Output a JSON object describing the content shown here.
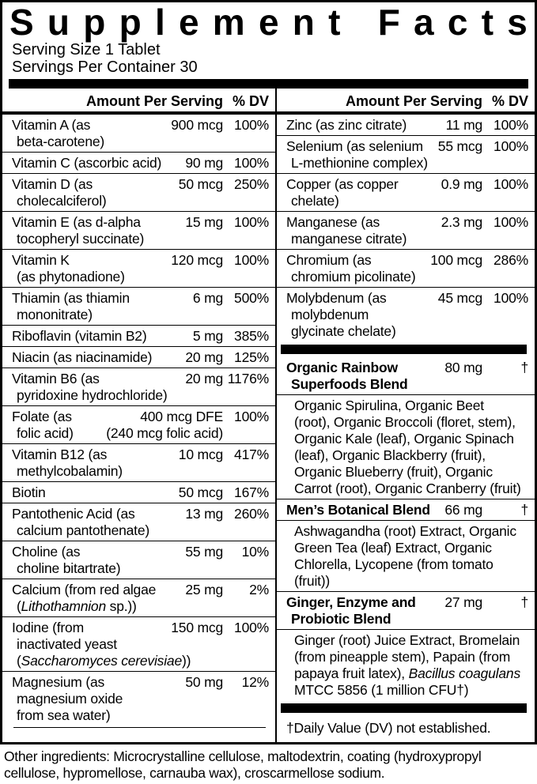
{
  "label": {
    "title": "Supplement Facts",
    "serving_size": "Serving Size 1 Tablet",
    "servings_per_container": "Servings Per Container 30",
    "column_header": {
      "amount": "Amount Per Serving",
      "dv": "% DV"
    },
    "left_column": [
      {
        "type": "row",
        "name_lines": [
          [
            "Vitamin A (as"
          ],
          [
            "beta-carotene)"
          ]
        ],
        "amount_lines": [
          "900 mcg"
        ],
        "dv": "100%"
      },
      {
        "type": "row",
        "name_lines": [
          [
            "Vitamin C (ascorbic acid)"
          ]
        ],
        "amount_lines": [
          "90 mg"
        ],
        "dv": "100%"
      },
      {
        "type": "row",
        "name_lines": [
          [
            "Vitamin D (as"
          ],
          [
            "cholecalciferol)"
          ]
        ],
        "amount_lines": [
          "50 mcg"
        ],
        "dv": "250%"
      },
      {
        "type": "row",
        "name_lines": [
          [
            "Vitamin E (as d-alpha"
          ],
          [
            "tocopheryl succinate)"
          ]
        ],
        "amount_lines": [
          "15 mg"
        ],
        "dv": "100%"
      },
      {
        "type": "row",
        "name_lines": [
          [
            "Vitamin K"
          ],
          [
            "(as phytonadione)"
          ]
        ],
        "amount_lines": [
          "120 mcg"
        ],
        "dv": "100%"
      },
      {
        "type": "row",
        "name_lines": [
          [
            "Thiamin (as thiamin"
          ],
          [
            "mononitrate)"
          ]
        ],
        "amount_lines": [
          "6 mg"
        ],
        "dv": "500%"
      },
      {
        "type": "row",
        "name_lines": [
          [
            "Riboflavin (vitamin B2)"
          ]
        ],
        "amount_lines": [
          "5 mg"
        ],
        "dv": "385%"
      },
      {
        "type": "row",
        "name_lines": [
          [
            "Niacin (as niacinamide)"
          ]
        ],
        "amount_lines": [
          "20 mg"
        ],
        "dv": "125%"
      },
      {
        "type": "row",
        "name_lines": [
          [
            "Vitamin B6 (as"
          ],
          [
            "pyridoxine hydrochloride)"
          ]
        ],
        "amount_lines": [
          "20 mg"
        ],
        "dv": "1176%"
      },
      {
        "type": "row",
        "name_lines": [
          [
            "Folate (as"
          ],
          [
            "folic acid)"
          ]
        ],
        "amount_lines": [
          "400 mcg DFE",
          "(240 mcg folic acid)"
        ],
        "dv": "100%"
      },
      {
        "type": "row",
        "name_lines": [
          [
            "Vitamin B12 (as"
          ],
          [
            "methylcobalamin)"
          ]
        ],
        "amount_lines": [
          "10 mcg"
        ],
        "dv": "417%"
      },
      {
        "type": "row",
        "name_lines": [
          [
            "Biotin"
          ]
        ],
        "amount_lines": [
          "50 mcg"
        ],
        "dv": "167%"
      },
      {
        "type": "row",
        "name_lines": [
          [
            "Pantothenic Acid (as"
          ],
          [
            "calcium pantothenate)"
          ]
        ],
        "amount_lines": [
          "13 mg"
        ],
        "dv": "260%"
      },
      {
        "type": "row",
        "name_lines": [
          [
            "Choline (as"
          ],
          [
            "choline bitartrate)"
          ]
        ],
        "amount_lines": [
          "55 mg"
        ],
        "dv": "10%"
      },
      {
        "type": "row",
        "name_lines": [
          [
            "Calcium (from red algae"
          ],
          [
            "(",
            {
              "i": "Lithothamnion"
            },
            " sp.))"
          ]
        ],
        "amount_lines": [
          "25 mg"
        ],
        "dv": "2%"
      },
      {
        "type": "row",
        "name_lines": [
          [
            "Iodine (from"
          ],
          [
            "inactivated yeast"
          ],
          [
            "(",
            {
              "i": "Saccharomyces cerevisiae"
            },
            "))"
          ]
        ],
        "amount_lines": [
          "150 mcg"
        ],
        "dv": "100%"
      },
      {
        "type": "row",
        "name_lines": [
          [
            "Magnesium (as"
          ],
          [
            "magnesium oxide"
          ],
          [
            "from sea water)"
          ]
        ],
        "amount_lines": [
          "50 mg"
        ],
        "dv": "12%"
      }
    ],
    "right_column": [
      {
        "type": "row",
        "name_lines": [
          [
            "Zinc (as zinc citrate)"
          ]
        ],
        "amount_lines": [
          "11 mg"
        ],
        "dv": "100%"
      },
      {
        "type": "row",
        "name_lines": [
          [
            "Selenium (as selenium"
          ],
          [
            "L-methionine complex)"
          ]
        ],
        "amount_lines": [
          "55 mcg"
        ],
        "dv": "100%"
      },
      {
        "type": "row",
        "name_lines": [
          [
            "Copper (as copper"
          ],
          [
            "chelate)"
          ]
        ],
        "amount_lines": [
          "0.9 mg"
        ],
        "dv": "100%"
      },
      {
        "type": "row",
        "name_lines": [
          [
            "Manganese (as"
          ],
          [
            "manganese citrate)"
          ]
        ],
        "amount_lines": [
          "2.3 mg"
        ],
        "dv": "100%"
      },
      {
        "type": "row",
        "name_lines": [
          [
            "Chromium (as"
          ],
          [
            "chromium picolinate)"
          ]
        ],
        "amount_lines": [
          "100 mcg"
        ],
        "dv": "286%"
      },
      {
        "type": "row",
        "name_lines": [
          [
            "Molybdenum (as"
          ],
          [
            "molybdenum"
          ],
          [
            "glycinate chelate)"
          ]
        ],
        "amount_lines": [
          "45 mcg"
        ],
        "dv": "100%"
      },
      {
        "type": "bar"
      },
      {
        "type": "blend_header",
        "name_lines": [
          [
            "Organic Rainbow"
          ],
          [
            "Superfoods Blend"
          ]
        ],
        "amount_lines": [
          "80 mg"
        ],
        "dv": "†"
      },
      {
        "type": "sublist",
        "lines": [
          [
            "Organic Spirulina, Organic Beet"
          ],
          [
            "(root), Organic Broccoli (floret, stem),"
          ],
          [
            "Organic Kale (leaf), Organic Spinach"
          ],
          [
            "(leaf), Organic Blackberry (fruit),"
          ],
          [
            "Organic Blueberry (fruit), Organic"
          ],
          [
            "Carrot (root), Organic Cranberry (fruit)"
          ]
        ]
      },
      {
        "type": "blend_header",
        "name_lines": [
          [
            "Men’s Botanical Blend"
          ]
        ],
        "amount_lines": [
          "66 mg"
        ],
        "dv": "†"
      },
      {
        "type": "sublist",
        "lines": [
          [
            "Ashwagandha (root) Extract, Organic"
          ],
          [
            "Green Tea (leaf) Extract, Organic"
          ],
          [
            "Chlorella, Lycopene (from tomato"
          ],
          [
            "(fruit))"
          ]
        ]
      },
      {
        "type": "blend_header",
        "name_lines": [
          [
            "Ginger, Enzyme and"
          ],
          [
            "Probiotic Blend"
          ]
        ],
        "amount_lines": [
          "27 mg"
        ],
        "dv": "†"
      },
      {
        "type": "sublist",
        "lines": [
          [
            "Ginger (root) Juice Extract, Bromelain"
          ],
          [
            "(from pineapple stem), Papain (from"
          ],
          [
            "papaya fruit latex), ",
            {
              "i": "Bacillus coagulans"
            }
          ],
          [
            "MTCC 5856 (1 million CFU†)"
          ]
        ]
      },
      {
        "type": "bar"
      },
      {
        "type": "note",
        "text": "†Daily Value (DV) not established."
      }
    ],
    "other_ingredients_lines": [
      "Other ingredients: Microcrystalline cellulose, maltodextrin, coating (hydroxypropyl",
      "cellulose, hypromellose, carnauba wax), croscarmellose sodium."
    ]
  }
}
